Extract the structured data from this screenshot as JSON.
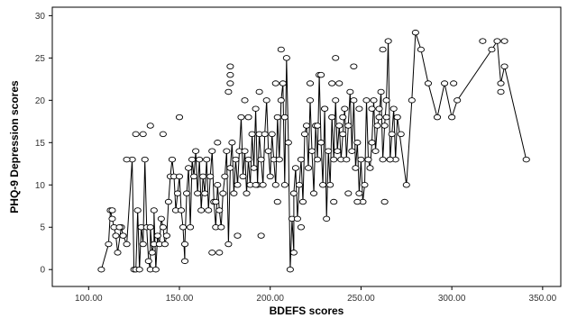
{
  "chart_data": {
    "type": "scatter",
    "xlabel": "BDEFS scores",
    "ylabel": "PHQ-9 Depression scores",
    "xlim": [
      80,
      360
    ],
    "ylim": [
      -2,
      31
    ],
    "x_ticks": [
      100,
      150,
      200,
      250,
      300,
      350
    ],
    "x_tick_labels": [
      "100.00",
      "150.00",
      "200.00",
      "250.00",
      "300.00",
      "350.00"
    ],
    "y_ticks": [
      0,
      5,
      10,
      15,
      20,
      25,
      30
    ],
    "y_tick_labels": [
      "0",
      "5",
      "10",
      "15",
      "20",
      "25",
      "30"
    ],
    "grid": false,
    "marker": "open-circle",
    "connected_line": true,
    "series": [
      {
        "points": [
          [
            107,
            0
          ],
          [
            111,
            3
          ],
          [
            112,
            7
          ],
          [
            113,
            6
          ],
          [
            114,
            5
          ],
          [
            115,
            4
          ],
          [
            116,
            2
          ],
          [
            118,
            5
          ],
          [
            119,
            4
          ],
          [
            121,
            3
          ],
          [
            124,
            13
          ],
          [
            125,
            0
          ],
          [
            126,
            0
          ],
          [
            127,
            7
          ],
          [
            128,
            0
          ],
          [
            129,
            5
          ],
          [
            130,
            3
          ],
          [
            131,
            13
          ],
          [
            132,
            5
          ],
          [
            133,
            1
          ],
          [
            134,
            0
          ],
          [
            134,
            5
          ],
          [
            135,
            2
          ],
          [
            136,
            3
          ],
          [
            136,
            7
          ],
          [
            137,
            0
          ],
          [
            138,
            4
          ],
          [
            139,
            3
          ],
          [
            140,
            6
          ],
          [
            141,
            5
          ],
          [
            142,
            3
          ],
          [
            143,
            4
          ],
          [
            144,
            8
          ],
          [
            145,
            11
          ],
          [
            146,
            13
          ],
          [
            147,
            11
          ],
          [
            148,
            7
          ],
          [
            149,
            9
          ],
          [
            150,
            11
          ],
          [
            151,
            7
          ],
          [
            152,
            5
          ],
          [
            153,
            1
          ],
          [
            153,
            3
          ],
          [
            154,
            9
          ],
          [
            155,
            12
          ],
          [
            156,
            5
          ],
          [
            157,
            13
          ],
          [
            158,
            11
          ],
          [
            159,
            14
          ],
          [
            160,
            9
          ],
          [
            161,
            13
          ],
          [
            162,
            7
          ],
          [
            163,
            11
          ],
          [
            164,
            9
          ],
          [
            165,
            13
          ],
          [
            166,
            7
          ],
          [
            167,
            11
          ],
          [
            168,
            14
          ],
          [
            169,
            8
          ],
          [
            170,
            5
          ],
          [
            171,
            10
          ],
          [
            172,
            7
          ],
          [
            173,
            5
          ],
          [
            174,
            9
          ],
          [
            175,
            11
          ],
          [
            176,
            14
          ],
          [
            177,
            3
          ],
          [
            178,
            12
          ],
          [
            179,
            15
          ],
          [
            180,
            9
          ],
          [
            181,
            13
          ],
          [
            182,
            10
          ],
          [
            183,
            14
          ],
          [
            184,
            18
          ],
          [
            185,
            11
          ],
          [
            186,
            14
          ],
          [
            187,
            9
          ],
          [
            188,
            13
          ],
          [
            189,
            10
          ],
          [
            190,
            16
          ],
          [
            191,
            12
          ],
          [
            192,
            19
          ],
          [
            193,
            10
          ],
          [
            194,
            16
          ],
          [
            195,
            13
          ],
          [
            196,
            10
          ],
          [
            197,
            16
          ],
          [
            198,
            20
          ],
          [
            199,
            14
          ],
          [
            200,
            11
          ],
          [
            201,
            16
          ],
          [
            202,
            13
          ],
          [
            203,
            10
          ],
          [
            204,
            18
          ],
          [
            205,
            13
          ],
          [
            206,
            20
          ],
          [
            207,
            22
          ],
          [
            208,
            10
          ],
          [
            209,
            25
          ],
          [
            210,
            15
          ],
          [
            211,
            0
          ],
          [
            212,
            6
          ],
          [
            213,
            2
          ],
          [
            213,
            9
          ],
          [
            214,
            12
          ],
          [
            215,
            6
          ],
          [
            216,
            10
          ],
          [
            217,
            13
          ],
          [
            218,
            8
          ],
          [
            219,
            16
          ],
          [
            220,
            17
          ],
          [
            221,
            12
          ],
          [
            222,
            20
          ],
          [
            223,
            14
          ],
          [
            224,
            9
          ],
          [
            225,
            17
          ],
          [
            226,
            13
          ],
          [
            227,
            23
          ],
          [
            228,
            15
          ],
          [
            229,
            10
          ],
          [
            230,
            19
          ],
          [
            231,
            6
          ],
          [
            232,
            14
          ],
          [
            233,
            10
          ],
          [
            234,
            18
          ],
          [
            235,
            13
          ],
          [
            236,
            20
          ],
          [
            237,
            14
          ],
          [
            238,
            17
          ],
          [
            239,
            13
          ],
          [
            240,
            16
          ],
          [
            241,
            19
          ],
          [
            242,
            13
          ],
          [
            243,
            17
          ],
          [
            244,
            21
          ],
          [
            245,
            14
          ],
          [
            246,
            20
          ],
          [
            247,
            12
          ],
          [
            248,
            15
          ],
          [
            249,
            9
          ],
          [
            250,
            13
          ],
          [
            251,
            8
          ],
          [
            252,
            10
          ],
          [
            253,
            20
          ],
          [
            254,
            13
          ],
          [
            255,
            12
          ],
          [
            256,
            15
          ],
          [
            257,
            20
          ],
          [
            258,
            14
          ],
          [
            259,
            17
          ],
          [
            260,
            18
          ],
          [
            261,
            21
          ],
          [
            262,
            13
          ],
          [
            263,
            17
          ],
          [
            264,
            20
          ],
          [
            265,
            27
          ],
          [
            266,
            13
          ],
          [
            267,
            16
          ],
          [
            268,
            19
          ],
          [
            269,
            13
          ],
          [
            270,
            18
          ],
          [
            275,
            10
          ],
          [
            278,
            20
          ],
          [
            280,
            28
          ],
          [
            283,
            26
          ],
          [
            287,
            22
          ],
          [
            292,
            18
          ],
          [
            296,
            22
          ],
          [
            300,
            18
          ],
          [
            303,
            20
          ],
          [
            322,
            26
          ],
          [
            325,
            27
          ],
          [
            327,
            22
          ],
          [
            329,
            24
          ],
          [
            341,
            13
          ]
        ]
      }
    ],
    "extra_points": [
      [
        113,
        7
      ],
      [
        130,
        16
      ],
      [
        134,
        17
      ],
      [
        150,
        18
      ],
      [
        171,
        15
      ],
      [
        177,
        21
      ],
      [
        178,
        22
      ],
      [
        178,
        24
      ],
      [
        178,
        23
      ],
      [
        182,
        4
      ],
      [
        186,
        20
      ],
      [
        188,
        18
      ],
      [
        192,
        10
      ],
      [
        194,
        21
      ],
      [
        203,
        22
      ],
      [
        206,
        26
      ],
      [
        208,
        18
      ],
      [
        222,
        22
      ],
      [
        226,
        17
      ],
      [
        228,
        23
      ],
      [
        230,
        19
      ],
      [
        234,
        22
      ],
      [
        236,
        25
      ],
      [
        238,
        22
      ],
      [
        240,
        18
      ],
      [
        246,
        24
      ],
      [
        249,
        19
      ],
      [
        256,
        19
      ],
      [
        260,
        19
      ],
      [
        262,
        26
      ],
      [
        264,
        18
      ],
      [
        266,
        13
      ],
      [
        272,
        16
      ],
      [
        301,
        22
      ],
      [
        317,
        27
      ],
      [
        327,
        21
      ],
      [
        329,
        27
      ],
      [
        117,
        5
      ],
      [
        121,
        13
      ],
      [
        126,
        16
      ],
      [
        141,
        16
      ],
      [
        168,
        2
      ],
      [
        170,
        8
      ],
      [
        172,
        2
      ],
      [
        195,
        4
      ],
      [
        204,
        8
      ],
      [
        217,
        5
      ],
      [
        235,
        8
      ],
      [
        243,
        9
      ],
      [
        248,
        8
      ],
      [
        263,
        8
      ]
    ]
  }
}
